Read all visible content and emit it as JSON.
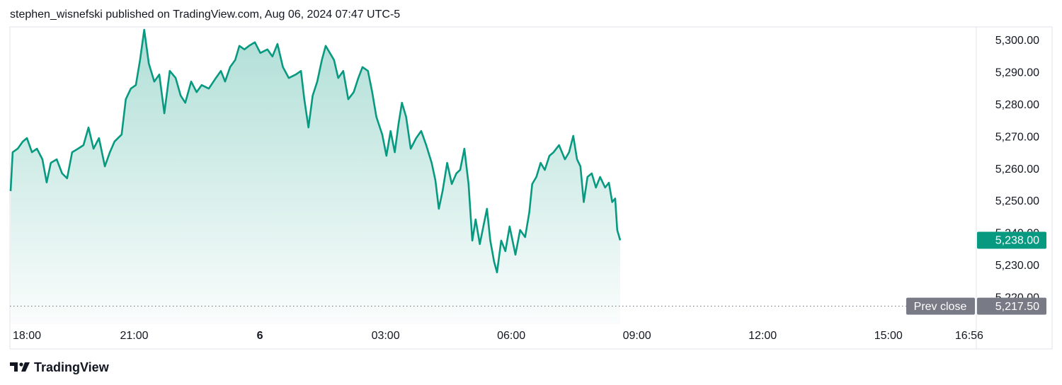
{
  "header": "stephen_wisnefski published on TradingView.com, Aug 06, 2024 07:47 UTC-5",
  "brand": "TradingView",
  "chart_data": {
    "type": "area",
    "color": "#089981",
    "x": [
      0.05,
      0.1,
      0.22,
      0.34,
      0.44,
      0.56,
      0.68,
      0.81,
      0.91,
      1.01,
      1.15,
      1.28,
      1.4,
      1.52,
      1.66,
      1.79,
      1.91,
      2.03,
      2.16,
      2.3,
      2.42,
      2.53,
      2.7,
      2.8,
      2.92,
      3.04,
      3.14,
      3.24,
      3.35,
      3.48,
      3.6,
      3.72,
      3.85,
      3.99,
      4.11,
      4.22,
      4.36,
      4.49,
      4.61,
      4.78,
      4.95,
      5.07,
      5.17,
      5.29,
      5.41,
      5.51,
      5.63,
      5.74,
      5.88,
      6.01,
      6.18,
      6.3,
      6.42,
      6.55,
      6.69,
      6.86,
      6.98,
      7.06,
      7.16,
      7.26,
      7.37,
      7.48,
      7.57,
      7.67,
      7.77,
      7.87,
      7.99,
      8.11,
      8.24,
      8.35,
      8.45,
      8.58,
      8.68,
      8.78,
      8.92,
      9.02,
      9.12,
      9.22,
      9.31,
      9.39,
      9.49,
      9.6,
      9.73,
      9.85,
      9.97,
      10.1,
      10.19,
      10.27,
      10.36,
      10.47,
      10.58,
      10.69,
      10.78,
      10.88,
      10.98,
      11.07,
      11.15,
      11.25,
      11.35,
      11.42,
      11.5,
      11.59,
      11.66,
      11.76,
      11.86,
      11.96,
      12.1,
      12.21,
      12.33,
      12.43,
      12.5,
      12.6,
      12.7,
      12.8,
      12.91,
      13.01,
      13.14,
      13.28,
      13.38,
      13.48,
      13.57,
      13.65,
      13.73,
      13.82,
      13.92,
      14.02,
      14.12,
      14.24,
      14.33,
      14.41,
      14.48,
      14.53,
      14.6
    ],
    "values": [
      5253.3,
      5265.4,
      5266.5,
      5268.7,
      5269.8,
      5265.4,
      5266.5,
      5263.2,
      5256.0,
      5262.1,
      5263.2,
      5258.8,
      5257.3,
      5265.4,
      5266.5,
      5267.6,
      5273.1,
      5266.5,
      5269.8,
      5261.0,
      5265.4,
      5268.7,
      5270.9,
      5281.9,
      5285.2,
      5286.3,
      5294.1,
      5303.5,
      5293.0,
      5287.4,
      5289.6,
      5277.5,
      5290.7,
      5288.5,
      5283.0,
      5280.8,
      5287.4,
      5284.1,
      5286.3,
      5285.2,
      5288.5,
      5290.7,
      5287.4,
      5291.9,
      5294.1,
      5298.5,
      5297.4,
      5298.5,
      5299.6,
      5296.3,
      5297.4,
      5295.2,
      5299.1,
      5291.9,
      5288.5,
      5289.6,
      5290.7,
      5281.9,
      5273.1,
      5283.0,
      5287.4,
      5294.1,
      5298.5,
      5296.3,
      5294.1,
      5288.5,
      5290.7,
      5281.9,
      5284.1,
      5288.5,
      5291.9,
      5290.7,
      5284.1,
      5276.4,
      5270.9,
      5264.3,
      5272.0,
      5265.4,
      5274.2,
      5280.8,
      5276.4,
      5266.5,
      5269.8,
      5272.0,
      5267.6,
      5262.1,
      5256.6,
      5247.8,
      5253.3,
      5262.1,
      5255.5,
      5258.8,
      5259.9,
      5266.5,
      5255.5,
      5237.9,
      5244.5,
      5236.8,
      5243.4,
      5247.8,
      5237.9,
      5231.3,
      5228.0,
      5237.9,
      5234.6,
      5242.3,
      5233.5,
      5241.2,
      5239.0,
      5246.7,
      5255.5,
      5257.7,
      5262.1,
      5259.9,
      5264.3,
      5265.4,
      5267.6,
      5263.2,
      5265.4,
      5270.5,
      5263.2,
      5261.0,
      5249.9,
      5257.7,
      5258.8,
      5254.4,
      5257.7,
      5254.4,
      5255.9,
      5249.9,
      5251.0,
      5241.2,
      5238.0
    ],
    "xlim": [
      0,
      23.1
    ],
    "xticks": [
      {
        "value": 0,
        "label": "18:00"
      },
      {
        "value": 3,
        "label": "21:00"
      },
      {
        "value": 6,
        "label": "6"
      },
      {
        "value": 9,
        "label": "03:00"
      },
      {
        "value": 12,
        "label": "06:00"
      },
      {
        "value": 15,
        "label": "09:00"
      },
      {
        "value": 18,
        "label": "12:00"
      },
      {
        "value": 21,
        "label": "15:00"
      },
      {
        "value": 22.93,
        "label": "16:56"
      }
    ],
    "ylim": [
      5211.9,
      5304.4
    ],
    "yticks": [
      {
        "value": 5220,
        "label": "5,220.00"
      },
      {
        "value": 5230,
        "label": "5,230.00"
      },
      {
        "value": 5240,
        "label": "5,240.00"
      },
      {
        "value": 5250,
        "label": "5,250.00"
      },
      {
        "value": 5260,
        "label": "5,260.00"
      },
      {
        "value": 5270,
        "label": "5,270.00"
      },
      {
        "value": 5280,
        "label": "5,280.00"
      },
      {
        "value": 5290,
        "label": "5,290.00"
      },
      {
        "value": 5300,
        "label": "5,300.00"
      }
    ],
    "grid": false,
    "last_price": {
      "value": 5238,
      "label": "5,238.00"
    },
    "prev_close": {
      "name": "Prev close",
      "value": 5217.5,
      "label": "5,217.50",
      "color": "#787b86"
    }
  }
}
